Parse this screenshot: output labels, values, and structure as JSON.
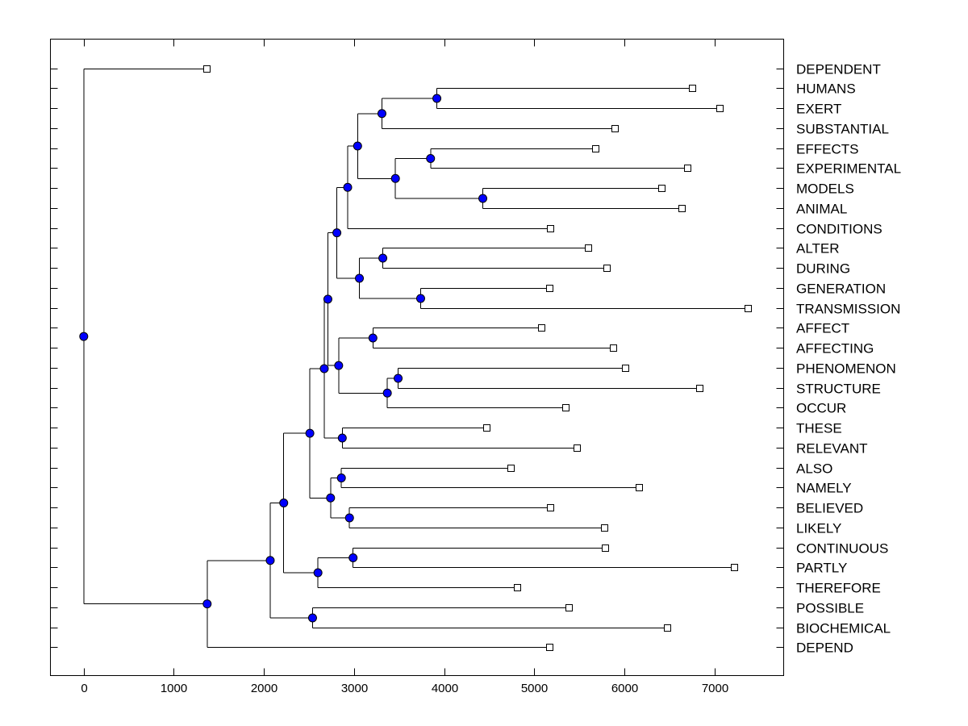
{
  "chart_data": {
    "type": "dendrogram",
    "orientation": "horizontal",
    "node_color": "#0000ff",
    "xlim": [
      -370,
      7770
    ],
    "xticks": [
      0,
      1000,
      2000,
      3000,
      4000,
      5000,
      6000,
      7000
    ],
    "leaves": [
      {
        "label": "DEPENDENT",
        "value": 1360
      },
      {
        "label": "HUMANS",
        "value": 6750
      },
      {
        "label": "EXERT",
        "value": 7060
      },
      {
        "label": "SUBSTANTIAL",
        "value": 5890
      },
      {
        "label": "EFFECTS",
        "value": 5680
      },
      {
        "label": "EXPERIMENTAL",
        "value": 6700
      },
      {
        "label": "MODELS",
        "value": 6410
      },
      {
        "label": "ANIMAL",
        "value": 6640
      },
      {
        "label": "CONDITIONS",
        "value": 5180
      },
      {
        "label": "ALTER",
        "value": 5600
      },
      {
        "label": "DURING",
        "value": 5800
      },
      {
        "label": "GENERATION",
        "value": 5170
      },
      {
        "label": "TRANSMISSION",
        "value": 7370
      },
      {
        "label": "AFFECT",
        "value": 5080
      },
      {
        "label": "AFFECTING",
        "value": 5880
      },
      {
        "label": "PHENOMENON",
        "value": 6010
      },
      {
        "label": "STRUCTURE",
        "value": 6830
      },
      {
        "label": "OCCUR",
        "value": 5350
      },
      {
        "label": "THESE",
        "value": 4470
      },
      {
        "label": "RELEVANT",
        "value": 5470
      },
      {
        "label": "ALSO",
        "value": 4740
      },
      {
        "label": "NAMELY",
        "value": 6160
      },
      {
        "label": "BELIEVED",
        "value": 5180
      },
      {
        "label": "LIKELY",
        "value": 5780
      },
      {
        "label": "CONTINUOUS",
        "value": 5790
      },
      {
        "label": "PARTLY",
        "value": 7220
      },
      {
        "label": "THEREFORE",
        "value": 4810
      },
      {
        "label": "POSSIBLE",
        "value": 5380
      },
      {
        "label": "BIOCHEMICAL",
        "value": 6480
      },
      {
        "label": "DEPEND",
        "value": 5170
      }
    ],
    "merges": [
      {
        "id": "m1",
        "children": [
          "HUMANS",
          "EXERT"
        ],
        "value": 3920
      },
      {
        "id": "m2",
        "children": [
          "m1",
          "SUBSTANTIAL"
        ],
        "value": 3310
      },
      {
        "id": "m3",
        "children": [
          "EFFECTS",
          "EXPERIMENTAL"
        ],
        "value": 3850
      },
      {
        "id": "m4",
        "children": [
          "MODELS",
          "ANIMAL"
        ],
        "value": 4430
      },
      {
        "id": "m5",
        "children": [
          "m3",
          "m4"
        ],
        "value": 3460
      },
      {
        "id": "m6",
        "children": [
          "m2",
          "m5"
        ],
        "value": 3040
      },
      {
        "id": "m7",
        "children": [
          "m6",
          "CONDITIONS"
        ],
        "value": 2930
      },
      {
        "id": "m8",
        "children": [
          "ALTER",
          "DURING"
        ],
        "value": 3320
      },
      {
        "id": "m9",
        "children": [
          "GENERATION",
          "TRANSMISSION"
        ],
        "value": 3740
      },
      {
        "id": "m10",
        "children": [
          "m8",
          "m9"
        ],
        "value": 3060
      },
      {
        "id": "m11",
        "children": [
          "m7",
          "m10"
        ],
        "value": 2810
      },
      {
        "id": "m12",
        "children": [
          "AFFECT",
          "AFFECTING"
        ],
        "value": 3210
      },
      {
        "id": "m13",
        "children": [
          "PHENOMENON",
          "STRUCTURE"
        ],
        "value": 3490
      },
      {
        "id": "m14",
        "children": [
          "m13",
          "OCCUR"
        ],
        "value": 3370
      },
      {
        "id": "m15",
        "children": [
          "m12",
          "m14"
        ],
        "value": 2830
      },
      {
        "id": "m16",
        "children": [
          "m11",
          "m15"
        ],
        "value": 2710
      },
      {
        "id": "m17",
        "children": [
          "THESE",
          "RELEVANT"
        ],
        "value": 2870
      },
      {
        "id": "m18",
        "children": [
          "m16",
          "m17"
        ],
        "value": 2670
      },
      {
        "id": "m19",
        "children": [
          "ALSO",
          "NAMELY"
        ],
        "value": 2860
      },
      {
        "id": "m20",
        "children": [
          "BELIEVED",
          "LIKELY"
        ],
        "value": 2950
      },
      {
        "id": "m21",
        "children": [
          "m19",
          "m20"
        ],
        "value": 2740
      },
      {
        "id": "m22",
        "children": [
          "m18",
          "m21"
        ],
        "value": 2510
      },
      {
        "id": "m23",
        "children": [
          "CONTINUOUS",
          "PARTLY"
        ],
        "value": 2990
      },
      {
        "id": "m24",
        "children": [
          "m23",
          "THEREFORE"
        ],
        "value": 2600
      },
      {
        "id": "m25",
        "children": [
          "m22",
          "m24"
        ],
        "value": 2220
      },
      {
        "id": "m26",
        "children": [
          "POSSIBLE",
          "BIOCHEMICAL"
        ],
        "value": 2540
      },
      {
        "id": "m27",
        "children": [
          "m25",
          "m26"
        ],
        "value": 2070
      },
      {
        "id": "m28",
        "children": [
          "m27",
          "DEPEND"
        ],
        "value": 1370
      },
      {
        "id": "m29",
        "children": [
          "DEPENDENT",
          "m28"
        ],
        "value": 0
      }
    ]
  }
}
